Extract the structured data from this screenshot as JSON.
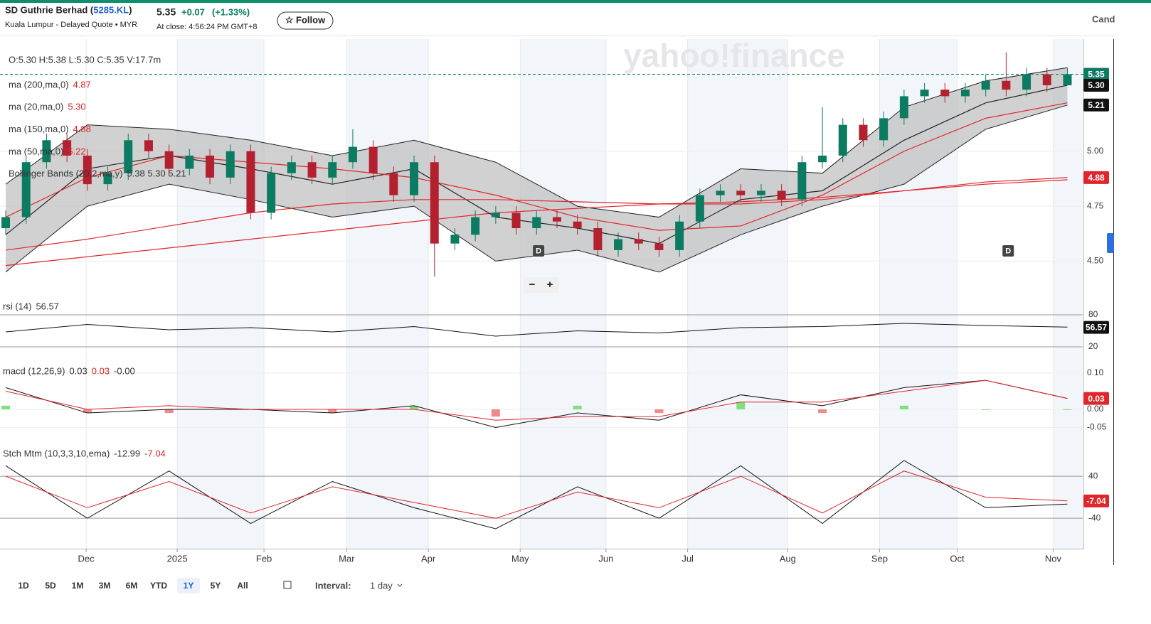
{
  "header": {
    "name": "SD Guthrie Berhad (",
    "symbol": "5285.KL",
    "name_end": ")",
    "subtitle": "Kuala Lumpur - Delayed Quote • MYR",
    "price": "5.35",
    "change": "+0.07",
    "change_pct": "(+1.33%)",
    "close_time": "At close: 4:56:24 PM GMT+8",
    "follow": "☆ Follow",
    "chart_type": "Cand"
  },
  "toolbar": {
    "ranges": [
      "1D",
      "5D",
      "1M",
      "3M",
      "6M",
      "YTD",
      "1Y",
      "5Y",
      "All"
    ],
    "active": "1Y",
    "interval_label": "Interval:",
    "interval": "1 day"
  },
  "chart_data": {
    "type": "candlestick",
    "watermark": "yahoo!finance",
    "ohlc_label": "O:5.30   H:5.38   L:5.30   C:5.35   V:17.7m",
    "categories": [
      null,
      null,
      null,
      null,
      null,
      null,
      null,
      null,
      null,
      null,
      null,
      null,
      null,
      null,
      null,
      null,
      null,
      null,
      null,
      null,
      null,
      null,
      null,
      null,
      null,
      null,
      null,
      null,
      null,
      null,
      null,
      null,
      null,
      null,
      null,
      null,
      null,
      null,
      null,
      null,
      null,
      null,
      null,
      null,
      null,
      null,
      null,
      null,
      null,
      null,
      null,
      null,
      null
    ],
    "open": [
      4.65,
      4.7,
      4.95,
      5.05,
      4.98,
      4.85,
      4.9,
      5.05,
      5.0,
      4.92,
      4.98,
      4.88,
      5.0,
      4.72,
      4.9,
      4.95,
      4.88,
      4.95,
      5.02,
      4.9,
      4.8,
      4.95,
      4.58,
      4.62,
      4.7,
      4.72,
      4.65,
      4.7,
      4.68,
      4.65,
      4.55,
      4.6,
      4.58,
      4.55,
      4.68,
      4.8,
      4.82,
      4.8,
      4.82,
      4.78,
      4.95,
      4.98,
      5.12,
      5.05,
      5.15,
      5.25,
      5.28,
      5.25,
      5.28,
      5.32,
      5.28,
      5.35,
      5.3
    ],
    "high": [
      4.73,
      4.98,
      5.08,
      5.08,
      5.01,
      4.93,
      5.08,
      5.08,
      5.03,
      5.01,
      5.01,
      5.03,
      5.03,
      4.93,
      4.98,
      4.98,
      4.98,
      5.1,
      5.05,
      4.93,
      4.98,
      4.98,
      4.65,
      4.73,
      4.75,
      4.75,
      4.73,
      4.73,
      4.71,
      4.68,
      4.63,
      4.63,
      4.61,
      4.71,
      4.83,
      4.85,
      4.85,
      4.85,
      4.85,
      4.98,
      5.2,
      5.15,
      5.15,
      5.18,
      5.28,
      5.31,
      5.31,
      5.31,
      5.35,
      5.45,
      5.38,
      5.38,
      5.38
    ],
    "low": [
      4.62,
      4.67,
      4.92,
      4.95,
      4.82,
      4.82,
      4.87,
      4.97,
      4.89,
      4.89,
      4.85,
      4.85,
      4.69,
      4.69,
      4.87,
      4.85,
      4.85,
      4.92,
      4.87,
      4.77,
      4.77,
      4.43,
      4.55,
      4.59,
      4.67,
      4.62,
      4.62,
      4.65,
      4.62,
      4.52,
      4.52,
      4.55,
      4.52,
      4.52,
      4.65,
      4.77,
      4.77,
      4.77,
      4.75,
      4.75,
      4.92,
      4.95,
      5.02,
      5.02,
      5.12,
      5.22,
      5.22,
      5.22,
      5.25,
      5.25,
      5.25,
      5.27,
      5.3
    ],
    "close": [
      4.7,
      4.95,
      5.05,
      4.98,
      4.85,
      4.9,
      5.05,
      5.0,
      4.92,
      4.98,
      4.88,
      5.0,
      4.72,
      4.9,
      4.95,
      4.88,
      4.95,
      5.02,
      4.9,
      4.8,
      4.95,
      4.58,
      4.62,
      4.7,
      4.72,
      4.65,
      4.7,
      4.68,
      4.65,
      4.55,
      4.6,
      4.58,
      4.55,
      4.68,
      4.8,
      4.82,
      4.8,
      4.82,
      4.78,
      4.95,
      4.98,
      5.12,
      5.05,
      5.15,
      5.25,
      5.28,
      5.25,
      5.28,
      5.32,
      5.28,
      5.35,
      5.3,
      5.35
    ],
    "up_color": "#0b7b62",
    "down_color": "#b3202f",
    "xlim": [
      -0.28,
      52.75
    ],
    "xticks": [
      {
        "value": 3.94,
        "label": "Dec"
      },
      {
        "value": 8.4,
        "label": "2025"
      },
      {
        "value": 12.65,
        "label": "Feb"
      },
      {
        "value": 16.7,
        "label": "Mar"
      },
      {
        "value": 20.7,
        "label": "Apr"
      },
      {
        "value": 25.2,
        "label": "May"
      },
      {
        "value": 29.4,
        "label": "Jun"
      },
      {
        "value": 33.4,
        "label": "Jul"
      },
      {
        "value": 38.3,
        "label": "Aug"
      },
      {
        "value": 42.8,
        "label": "Sep"
      },
      {
        "value": 46.6,
        "label": "Oct"
      },
      {
        "value": 51.3,
        "label": "Nov"
      }
    ],
    "ylim": [
      4.33,
      5.51
    ],
    "yticks": [
      {
        "value": 4.5,
        "label": "4.50"
      },
      {
        "value": 4.75,
        "label": "4.75"
      },
      {
        "value": 5.0,
        "label": "5.00"
      }
    ],
    "badges": [
      {
        "value": 5.35,
        "label": "5.35",
        "color": "#0b7b62"
      },
      {
        "value": 5.3,
        "label": "5.30",
        "color": "#111111"
      },
      {
        "value": 5.21,
        "label": "5.21",
        "color": "#111111"
      },
      {
        "value": 4.88,
        "label": "4.88",
        "color": "#e0262b"
      }
    ],
    "overlays": [
      {
        "name": "ma (200,ma,0)",
        "value_label": "4.87",
        "color": "#e0262b",
        "x": [
          0,
          4,
          8,
          12,
          16,
          20,
          24,
          28,
          32,
          36,
          40,
          44,
          48,
          52
        ],
        "values": [
          4.48,
          4.52,
          4.56,
          4.6,
          4.64,
          4.68,
          4.72,
          4.74,
          4.76,
          4.77,
          4.79,
          4.82,
          4.85,
          4.87
        ]
      },
      {
        "name": "ma (20,ma,0)",
        "value_label": "5.30",
        "color": "#222222",
        "x": [
          0,
          4,
          8,
          12,
          16,
          20,
          24,
          28,
          32,
          36,
          40,
          44,
          48,
          52
        ],
        "values": [
          4.62,
          4.92,
          4.98,
          4.92,
          4.85,
          4.92,
          4.7,
          4.65,
          4.58,
          4.78,
          4.82,
          5.05,
          5.22,
          5.3
        ]
      },
      {
        "name": "ma (150,ma,0)",
        "value_label": "4.88",
        "color": "#e0262b",
        "x": [
          0,
          4,
          8,
          12,
          16,
          20,
          24,
          28,
          32,
          36,
          40,
          44,
          48,
          52
        ],
        "values": [
          4.55,
          4.6,
          4.66,
          4.72,
          4.76,
          4.78,
          4.78,
          4.77,
          4.76,
          4.76,
          4.78,
          4.82,
          4.86,
          4.88
        ]
      },
      {
        "name": "ma (50,ma,0)",
        "value_label": "5.22",
        "color": "#e0262b",
        "x": [
          0,
          4,
          8,
          12,
          16,
          20,
          24,
          28,
          32,
          36,
          40,
          44,
          48,
          52
        ],
        "values": [
          4.7,
          4.88,
          4.98,
          4.95,
          4.92,
          4.88,
          4.8,
          4.7,
          4.64,
          4.66,
          4.8,
          5.0,
          5.15,
          5.22
        ]
      }
    ],
    "bollinger": {
      "name": "Bollinger Bands (20,2,ma,y)",
      "value_label": "5.38 5.30 5.21",
      "x": [
        0,
        4,
        8,
        12,
        16,
        20,
        24,
        28,
        32,
        36,
        40,
        44,
        48,
        52
      ],
      "upper": [
        4.85,
        5.12,
        5.1,
        5.05,
        4.98,
        5.05,
        4.95,
        4.75,
        4.7,
        4.92,
        4.9,
        5.2,
        5.32,
        5.38
      ],
      "lower": [
        4.45,
        4.75,
        4.85,
        4.78,
        4.7,
        4.75,
        4.5,
        4.55,
        4.45,
        4.62,
        4.75,
        4.85,
        5.1,
        5.21
      ]
    },
    "markers": [
      {
        "label": "D",
        "x": 26.1
      },
      {
        "label": "D",
        "x": 49.1
      }
    ],
    "zoom_controls": [
      "−",
      "+"
    ],
    "rsi": {
      "name": "rsi (14)",
      "value_label": "56.57",
      "ylim": [
        20,
        80
      ],
      "yticks": [
        20,
        80
      ],
      "badge": {
        "value": 56.57,
        "color": "#111111"
      },
      "x": [
        0,
        4,
        8,
        12,
        16,
        20,
        24,
        28,
        32,
        36,
        40,
        44,
        48,
        52
      ],
      "values": [
        48,
        62,
        52,
        56,
        48,
        58,
        40,
        50,
        46,
        56,
        58,
        64,
        60,
        57
      ]
    },
    "macd": {
      "name": "macd (12,26,9)",
      "value_labels": [
        "0.03",
        "0.03",
        "-0.00"
      ],
      "ylim": [
        -0.106,
        0.149
      ],
      "yticks": [
        {
          "value": 0.1,
          "label": "0.10"
        },
        {
          "value": 0,
          "label": "0.00"
        },
        {
          "value": -0.05,
          "label": "-0.05"
        }
      ],
      "badge": {
        "value": 0.03,
        "color": "#e0262b"
      },
      "x": [
        0,
        4,
        8,
        12,
        16,
        20,
        24,
        28,
        32,
        36,
        40,
        44,
        48,
        52
      ],
      "macd": [
        0.06,
        -0.01,
        0.0,
        0.0,
        -0.01,
        0.01,
        -0.05,
        -0.01,
        -0.03,
        0.04,
        0.01,
        0.06,
        0.08,
        0.03
      ],
      "signal": [
        0.05,
        0.0,
        0.01,
        0.0,
        0.0,
        0.0,
        -0.03,
        -0.02,
        -0.02,
        0.02,
        0.02,
        0.05,
        0.08,
        0.03
      ],
      "histogram": [
        0.01,
        -0.01,
        -0.01,
        0,
        -0.01,
        0.01,
        -0.02,
        0.01,
        -0.01,
        0.02,
        -0.01,
        0.01,
        0,
        0
      ]
    },
    "stch": {
      "name": "Stch Mtm (10,3,3,10,ema)",
      "value_labels": [
        "-12.99",
        "-7.04"
      ],
      "ylim": [
        -98,
        74
      ],
      "yticks": [
        40,
        -40
      ],
      "badge": {
        "value": -7.04,
        "color": "#e0262b"
      },
      "x": [
        0,
        4,
        8,
        12,
        16,
        20,
        24,
        28,
        32,
        36,
        40,
        44,
        48,
        52
      ],
      "k": [
        60,
        -40,
        50,
        -50,
        30,
        -20,
        -60,
        20,
        -40,
        60,
        -50,
        70,
        -20,
        -13
      ],
      "d": [
        40,
        -20,
        30,
        -30,
        20,
        -10,
        -40,
        10,
        -20,
        40,
        -30,
        50,
        0,
        -7
      ]
    }
  }
}
